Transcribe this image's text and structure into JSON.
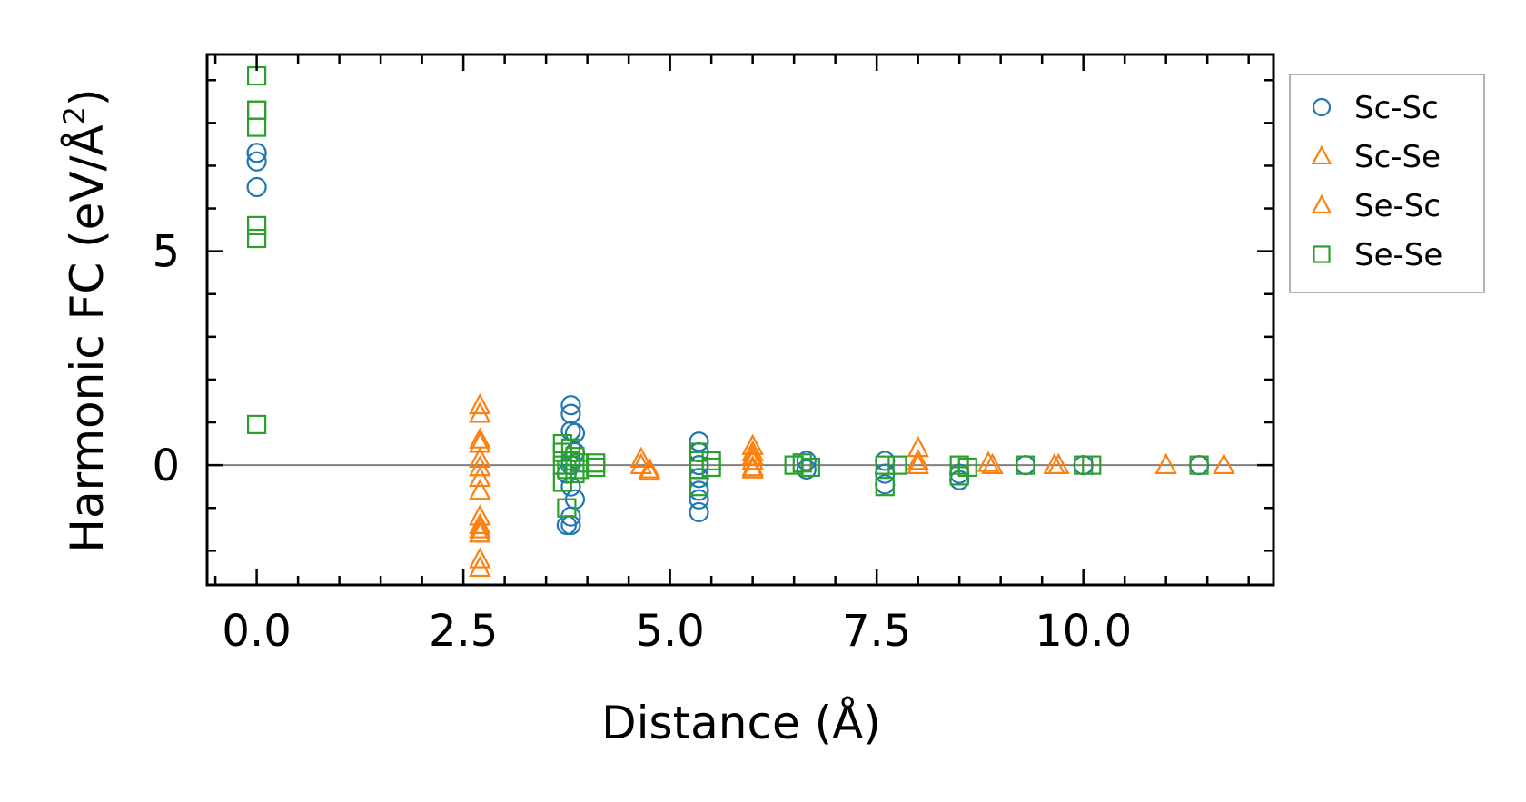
{
  "chart_data": {
    "type": "scatter",
    "title": "",
    "xlabel": "Distance (Å)",
    "ylabel": "Harmonic FC (eV/Å",
    "ylabel_sup": "2",
    "ylabel_close": ")",
    "xlim": [
      -0.6,
      12.3
    ],
    "ylim": [
      -2.8,
      9.6
    ],
    "xticks": [
      0.0,
      2.5,
      5.0,
      7.5,
      10.0
    ],
    "xtick_labels": [
      "0.0",
      "2.5",
      "5.0",
      "7.5",
      "10.0"
    ],
    "yticks": [
      0,
      5
    ],
    "ytick_labels": [
      "0",
      "5"
    ],
    "zero_line": 0,
    "legend": {
      "location": "outside-right-top"
    },
    "series": [
      {
        "name": "Sc-Sc",
        "marker": "circle",
        "color": "#1f77b4",
        "x": [
          0,
          0,
          0,
          0,
          3.8,
          3.8,
          3.8,
          3.85,
          3.85,
          3.8,
          3.8,
          3.75,
          3.8,
          3.85,
          3.8,
          3.8,
          3.75,
          5.35,
          5.35,
          5.35,
          5.35,
          5.35,
          5.35,
          5.35,
          6.65,
          6.65,
          7.6,
          7.6,
          7.6,
          8.5,
          8.5,
          9.3,
          10.0,
          11.4
        ],
        "y": [
          7.3,
          7.1,
          6.5,
          7.3,
          1.4,
          1.2,
          0.8,
          0.75,
          0.3,
          0.1,
          0,
          -0.2,
          -0.5,
          -0.8,
          -1.2,
          -1.4,
          -1.4,
          0.55,
          0.3,
          0,
          -0.3,
          -0.6,
          -0.8,
          -1.1,
          0.1,
          -0.1,
          0.1,
          -0.2,
          -0.45,
          -0.2,
          -0.35,
          0,
          0,
          0
        ]
      },
      {
        "name": "Sc-Se",
        "marker": "triangle",
        "color": "#ff7f0e",
        "x": [
          2.7,
          2.7,
          2.7,
          2.7,
          2.7,
          2.7,
          2.7,
          4.65,
          4.75,
          6.0,
          6.0,
          6.0,
          8.0,
          8.0,
          8.85,
          9.65,
          11.0
        ],
        "y": [
          1.4,
          0.6,
          0.15,
          -0.3,
          -1.2,
          -1.6,
          -2.2,
          0,
          -0.15,
          0.45,
          0.2,
          -0.05,
          0.4,
          0,
          0.05,
          0,
          0
        ]
      },
      {
        "name": "Se-Sc",
        "marker": "triangle",
        "color": "#ff7f0e",
        "x": [
          2.7,
          2.7,
          2.7,
          2.7,
          2.7,
          2.7,
          2.7,
          4.65,
          4.75,
          6.0,
          6.0,
          6.0,
          8.0,
          8.9,
          9.7,
          11.7
        ],
        "y": [
          1.2,
          0.5,
          -0.05,
          -0.6,
          -1.4,
          -1.5,
          -2.4,
          0.15,
          -0.1,
          0.3,
          0.1,
          -0.1,
          0.1,
          0,
          0,
          0
        ]
      },
      {
        "name": "Se-Se",
        "marker": "square",
        "color": "#2ca02c",
        "x": [
          0,
          0,
          0,
          0,
          0,
          0,
          0,
          3.7,
          3.7,
          3.7,
          3.7,
          3.75,
          3.75,
          3.8,
          3.8,
          3.85,
          3.85,
          3.9,
          3.9,
          4.1,
          4.1,
          5.35,
          5.35,
          5.35,
          5.35,
          5.5,
          5.5,
          6.5,
          6.6,
          6.7,
          7.6,
          7.6,
          7.75,
          8.5,
          8.5,
          8.6,
          9.3,
          10.0,
          10.1,
          11.4
        ],
        "y": [
          9.1,
          8.3,
          7.9,
          5.6,
          5.3,
          0.95,
          8.3,
          0.5,
          0.3,
          0,
          -0.4,
          -0.1,
          -1.0,
          0.4,
          0.1,
          0.2,
          -0.2,
          0.05,
          -0.1,
          0.05,
          -0.05,
          0.3,
          0.1,
          -0.1,
          -0.5,
          0.1,
          -0.05,
          0,
          0.05,
          -0.05,
          0,
          -0.5,
          0,
          0,
          -0.25,
          -0.05,
          0,
          0,
          0,
          0
        ]
      }
    ]
  }
}
